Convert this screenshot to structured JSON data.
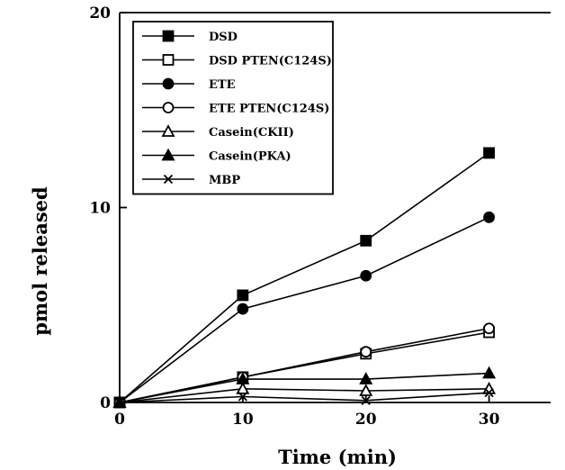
{
  "chart_data": {
    "type": "line",
    "xlabel": "Time  (min)",
    "ylabel": "pmol  released",
    "x": [
      0,
      10,
      20,
      30
    ],
    "xlim": [
      0,
      35
    ],
    "ylim": [
      0,
      20
    ],
    "xticks": [
      "0",
      "10",
      "20",
      "30"
    ],
    "yticks": [
      "0",
      "10",
      "20"
    ],
    "legend_position": "top-left",
    "series": [
      {
        "name": "DSD",
        "marker": "square-filled",
        "values": [
          0,
          5.5,
          8.3,
          12.8
        ]
      },
      {
        "name": "DSD PTEN(C124S)",
        "marker": "square-open",
        "values": [
          0,
          1.3,
          2.5,
          3.6
        ]
      },
      {
        "name": "ETE",
        "marker": "circle-filled",
        "values": [
          0,
          4.8,
          6.5,
          9.5
        ]
      },
      {
        "name": "ETE PTEN(C124S)",
        "marker": "circle-open",
        "values": [
          0,
          1.3,
          2.6,
          3.8
        ]
      },
      {
        "name": "Casein(CKII)",
        "marker": "triangle-open",
        "values": [
          0,
          0.7,
          0.6,
          0.7
        ]
      },
      {
        "name": "Casein(PKA)",
        "marker": "triangle-filled",
        "values": [
          0,
          1.2,
          1.2,
          1.5
        ]
      },
      {
        "name": "MBP",
        "marker": "cross",
        "values": [
          0,
          0.3,
          0.1,
          0.5
        ]
      }
    ]
  }
}
